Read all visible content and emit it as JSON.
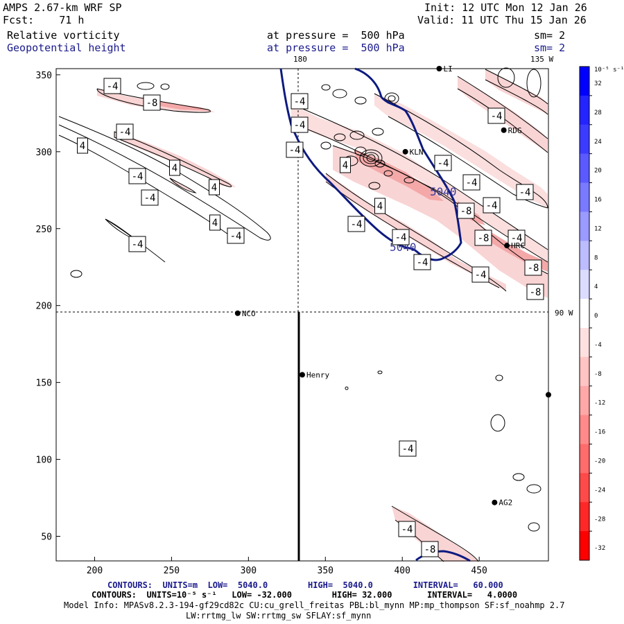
{
  "header": {
    "model": "AMPS 2.67-km WRF SP",
    "forecast": "Fcst:    71 h",
    "init": "Init: 12 UTC Mon 12 Jan 26",
    "valid": "Valid: 11 UTC Thu 15 Jan 26",
    "field1": "Relative vorticity",
    "field1_level": "at pressure =  500 hPa",
    "field1_sm": "sm= 2",
    "field2": "Geopotential height",
    "field2_level": "at pressure =  500 hPa",
    "field2_sm": "sm= 2"
  },
  "map_labels": {
    "lon_180": "180",
    "lon_135w": "135 W",
    "lon_90w": "90 W"
  },
  "stations": [
    {
      "name": "NCO",
      "x": 293,
      "y": 195
    },
    {
      "name": "Henry",
      "x": 335,
      "y": 155
    },
    {
      "name": "KLN",
      "x": 402,
      "y": 300
    },
    {
      "name": "RDG",
      "x": 466,
      "y": 314
    },
    {
      "name": "HRC",
      "x": 468,
      "y": 239
    },
    {
      "name": "AG2",
      "x": 460,
      "y": 72
    },
    {
      "name": "LI",
      "x": 424,
      "y": 354
    },
    {
      "name": "",
      "x": 495,
      "y": 142
    }
  ],
  "axes": {
    "x_ticks": [
      "200",
      "250",
      "300",
      "350",
      "400",
      "450"
    ],
    "y_ticks": [
      "350",
      "300",
      "250",
      "200",
      "150",
      "100",
      "50"
    ],
    "xlim": [
      175,
      495
    ],
    "ylim": [
      34,
      354
    ]
  },
  "height_contour_labels": [
    "5040",
    "5040"
  ],
  "vorticity_contour_labels": [
    "-4",
    "-8",
    "-4",
    "-4",
    "-4",
    "4",
    "-4",
    "4",
    "-4",
    "4",
    "-4",
    "4",
    "4",
    "-4",
    "4",
    "-4",
    "-4",
    "-4",
    "-4",
    "-4",
    "-4",
    "-4",
    "-8",
    "-4",
    "-8",
    "-4",
    "-4",
    "-4",
    "-8",
    "-8",
    "-4",
    "-4",
    "-8"
  ],
  "colorbar": {
    "unit": "10⁻⁵ s⁻¹",
    "ticks": [
      "32",
      "28",
      "24",
      "20",
      "16",
      "12",
      "8",
      "4",
      "0",
      "-4",
      "-8",
      "-12",
      "-16",
      "-20",
      "-24",
      "-28",
      "-32"
    ],
    "colors": [
      "#0000ff",
      "#2424ff",
      "#3c3cff",
      "#5a5aff",
      "#7a7aff",
      "#9a9aff",
      "#bcbcff",
      "#dcdcff",
      "#ffffff",
      "#ffe0e0",
      "#ffc4c4",
      "#ffa8a8",
      "#ff8a8a",
      "#ff6c6c",
      "#ff4a4a",
      "#ff2828",
      "#ff0000"
    ]
  },
  "footer": {
    "line1": "CONTOURS:  UNITS=m  LOW=  5040.0        HIGH=  5040.0        INTERVAL=   60.000",
    "line2": "CONTOURS:  UNITS=10⁻⁵ s⁻¹   LOW= -32.000        HIGH= 32.000       INTERVAL=   4.0000",
    "line3": "Model Info: MPASv8.2.3-194-gf29cd82c CU:cu_grell_freitas PBL:bl_mynn MP:mp_thompson SF:sf_noahmp 2.7",
    "line4": "LW:rrtmg_lw SW:rrtmg_sw SFLAY:sf_mynn"
  }
}
